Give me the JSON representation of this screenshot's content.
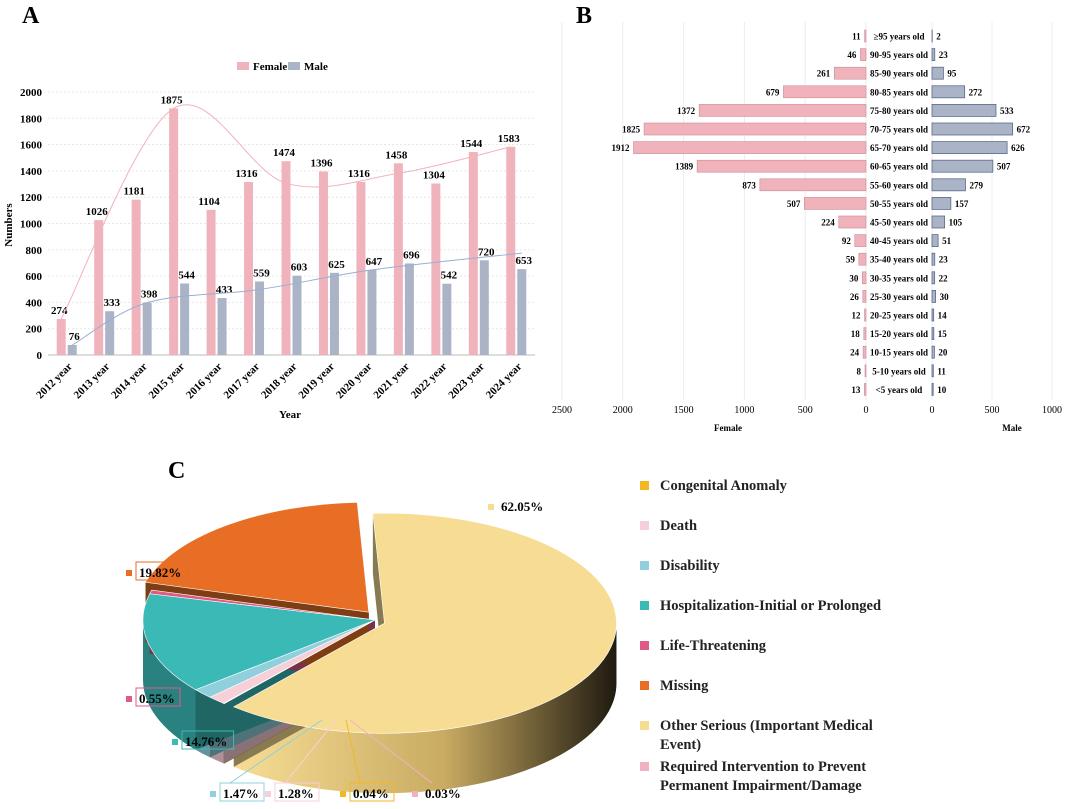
{
  "panels": {
    "a": "A",
    "b": "B",
    "c": "C"
  },
  "chart_data": [
    {
      "type": "bar",
      "panel": "A",
      "title": "",
      "xlabel": "Year",
      "ylabel": "Numbers",
      "ylim": [
        0,
        2000
      ],
      "yticks": [
        0,
        200,
        400,
        600,
        800,
        1000,
        1200,
        1400,
        1600,
        1800,
        2000
      ],
      "categories": [
        "2012 year",
        "2013 year",
        "2014 year",
        "2015 year",
        "2016 year",
        "2017 year",
        "2018 year",
        "2019 year",
        "2020 year",
        "2021 year",
        "2022 year",
        "2023 year",
        "2024 year"
      ],
      "series": [
        {
          "name": "Female",
          "color": "#f0b3bc",
          "values": [
            274,
            1026,
            1181,
            1875,
            1104,
            1316,
            1474,
            1396,
            1316,
            1458,
            1304,
            1544,
            1583
          ]
        },
        {
          "name": "Male",
          "color": "#aab4c6",
          "values": [
            76,
            333,
            398,
            544,
            433,
            559,
            603,
            625,
            647,
            696,
            542,
            720,
            653
          ]
        }
      ],
      "legend": "top-center",
      "trendlines": true
    },
    {
      "type": "bar",
      "panel": "B",
      "orientation": "horizontal-butterfly",
      "categories": [
        "≥95 years old",
        "90-95 years old",
        "85-90 years old",
        "80-85 years old",
        "75-80 years old",
        "70-75 years old",
        "65-70 years old",
        "60-65 years old",
        "55-60 years old",
        "50-55 years old",
        "45-50 years old",
        "40-45 years old",
        "35-40 years old",
        "30-35 years old",
        "25-30 years old",
        "20-25 years old",
        "15-20 years old",
        "10-15 years old",
        "5-10 years old",
        "<5 years old"
      ],
      "series": [
        {
          "name": "Female",
          "color": "#f0b3bc",
          "values": [
            11,
            46,
            261,
            679,
            1372,
            1825,
            1912,
            1389,
            873,
            507,
            224,
            92,
            59,
            30,
            26,
            12,
            18,
            24,
            8,
            13
          ]
        },
        {
          "name": "Male",
          "color": "#aab4c6",
          "values": [
            2,
            23,
            95,
            272,
            533,
            672,
            626,
            507,
            279,
            157,
            105,
            51,
            23,
            22,
            30,
            14,
            15,
            20,
            11,
            10
          ]
        }
      ],
      "female_ticks": [
        2500,
        2000,
        1500,
        1000,
        500,
        0
      ],
      "male_ticks": [
        0,
        500,
        1000
      ],
      "xlabel_left": "Female",
      "xlabel_right": "Male"
    },
    {
      "type": "pie",
      "panel": "C",
      "style": "3d-exploded",
      "labels": [
        "Congenital Anomaly",
        "Death",
        "Disability",
        "Hospitalization-Initial or Prolonged",
        "Life-Threatening",
        "Missing",
        "Other Serious (Important Medical Event)",
        "Required Intervention to Prevent Permanent Impairment/Damage"
      ],
      "values": [
        0.04,
        1.28,
        1.47,
        14.76,
        0.55,
        19.82,
        62.05,
        0.03
      ],
      "value_labels": [
        "0.04%",
        "1.28%",
        "1.47%",
        "14.76%",
        "0.55%",
        "19.82%",
        "62.05%",
        "0.03%"
      ],
      "colors": [
        "#f2b824",
        "#f7cfd8",
        "#8fd0dc",
        "#3bb9b7",
        "#de5b86",
        "#e76e24",
        "#f7dd94",
        "#f2b1c1"
      ],
      "legend": "right"
    }
  ]
}
